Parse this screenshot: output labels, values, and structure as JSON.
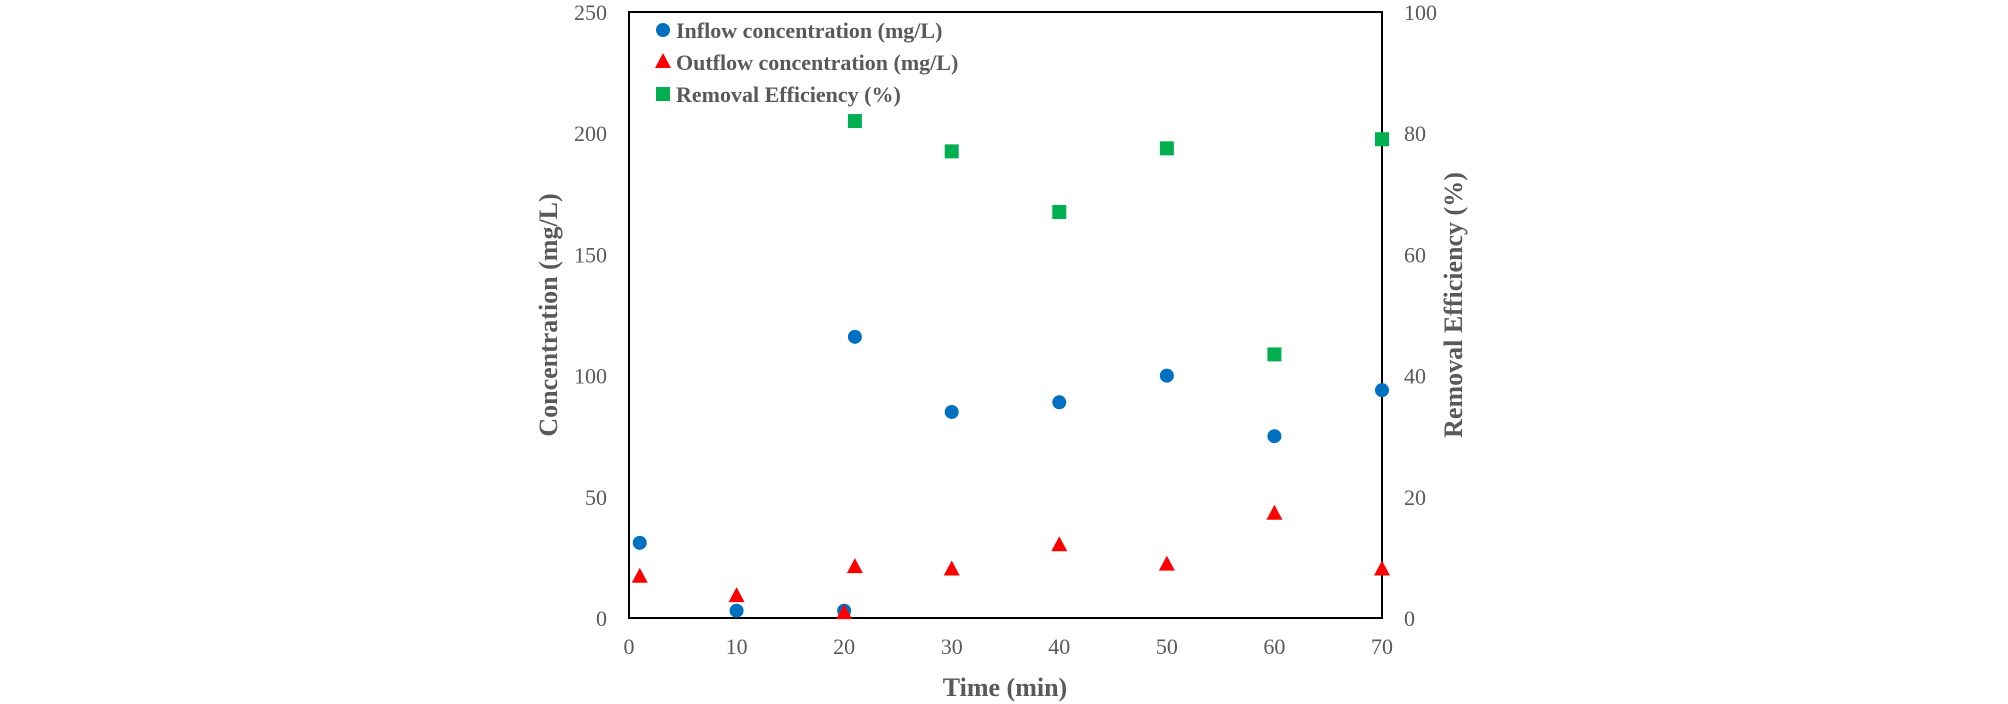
{
  "chart_data": {
    "type": "scatter",
    "xlabel": "Time (min)",
    "ylabel": "Concentration (mg/L)",
    "y2label": "Removal Efficiency (%)",
    "xlim": [
      0,
      70
    ],
    "ylim": [
      0,
      250
    ],
    "y2lim": [
      0,
      100
    ],
    "xticks": [
      "0",
      "10",
      "20",
      "30",
      "40",
      "50",
      "60",
      "70"
    ],
    "yticks": [
      "0",
      "50",
      "100",
      "150",
      "200",
      "250"
    ],
    "y2ticks": [
      "0",
      "20",
      "40",
      "60",
      "80",
      "100"
    ],
    "grid": false,
    "legend_position": "top-left",
    "series": [
      {
        "name": "Inflow concentration (mg/L)",
        "axis": "left",
        "marker": "circle",
        "color": "#0070C0",
        "x": [
          1,
          10,
          20,
          21,
          30,
          40,
          50,
          60,
          70
        ],
        "y": [
          31,
          3,
          3,
          116,
          85,
          89,
          100,
          75,
          94
        ]
      },
      {
        "name": "Outflow concentration (mg/L)",
        "axis": "left",
        "marker": "triangle",
        "color": "#FF0000",
        "x": [
          1,
          10,
          20,
          21,
          30,
          40,
          50,
          60,
          70
        ],
        "y": [
          17,
          9,
          2,
          21,
          20,
          30,
          22,
          43,
          20
        ]
      },
      {
        "name": "Removal Efficiency (%)",
        "axis": "right",
        "marker": "square",
        "color": "#00B050",
        "x": [
          21,
          30,
          40,
          50,
          60,
          70
        ],
        "y": [
          82,
          77,
          67,
          77.5,
          43.5,
          79
        ]
      }
    ]
  }
}
